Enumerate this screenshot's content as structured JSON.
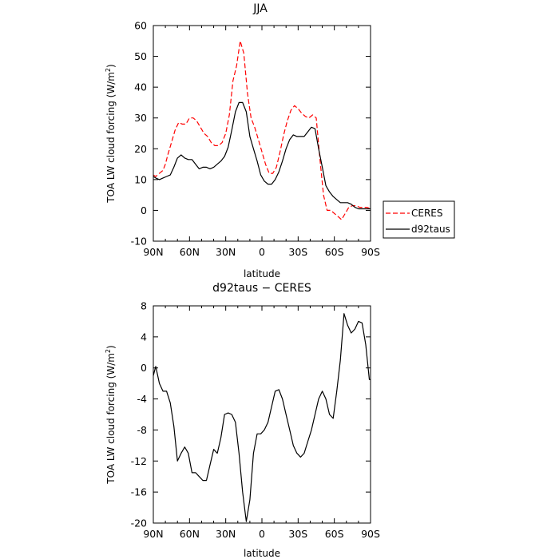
{
  "figure": {
    "background": "#ffffff"
  },
  "chart_data": [
    {
      "type": "line",
      "title": "JJA",
      "xlabel": "latitude",
      "ylabel": "TOA LW cloud forcing (W/m²)",
      "ylabel_parts": {
        "text": "TOA LW cloud forcing (W/m",
        "sup": "2",
        "close": ")"
      },
      "xlim": [
        90,
        -90
      ],
      "ylim": [
        -10,
        60
      ],
      "x_ticks": [
        {
          "value": 90,
          "label": "90N"
        },
        {
          "value": 60,
          "label": "60N"
        },
        {
          "value": 30,
          "label": "30N"
        },
        {
          "value": 0,
          "label": "0"
        },
        {
          "value": -30,
          "label": "30S"
        },
        {
          "value": -60,
          "label": "60S"
        },
        {
          "value": -90,
          "label": "90S"
        }
      ],
      "y_ticks": [
        -10,
        0,
        10,
        20,
        30,
        40,
        50,
        60
      ],
      "grid": false,
      "legend": {
        "position": "right-outside",
        "bordered": true
      },
      "series": [
        {
          "name": "CERES",
          "color": "#ff0000",
          "dash": "dashed",
          "x": [
            90,
            88,
            85,
            82,
            80,
            78,
            75,
            72,
            69,
            66,
            63,
            60,
            57,
            54,
            51,
            48,
            45,
            42,
            39,
            36,
            33,
            30,
            27,
            24,
            21,
            18,
            15,
            12,
            9,
            6,
            3,
            0,
            -3,
            -6,
            -9,
            -12,
            -15,
            -18,
            -21,
            -24,
            -27,
            -30,
            -33,
            -36,
            -39,
            -42,
            -45,
            -48,
            -51,
            -54,
            -57,
            -60,
            -63,
            -66,
            -69,
            -72,
            -75,
            -78,
            -81,
            -84,
            -87,
            -90
          ],
          "y": [
            11.5,
            11,
            12,
            13,
            15,
            18,
            22,
            26,
            28.5,
            28,
            28,
            30,
            30,
            29,
            27,
            25,
            24,
            22,
            21,
            21,
            22,
            25,
            31,
            42,
            47,
            55,
            51,
            38,
            30,
            27,
            23,
            19,
            15,
            12,
            12,
            14,
            19,
            24.5,
            29,
            32.5,
            34,
            33,
            31.5,
            30.5,
            30,
            31,
            30,
            17,
            5,
            0,
            0,
            -1,
            -2,
            -3,
            -1,
            1,
            1.5,
            1.5,
            1,
            1,
            1,
            0.5
          ]
        },
        {
          "name": "d92taus",
          "color": "#000000",
          "dash": "solid",
          "x": [
            90,
            88,
            85,
            82,
            79,
            76,
            73,
            70,
            67,
            64,
            61,
            58,
            55,
            52,
            49,
            46,
            43,
            40,
            37,
            34,
            31,
            28,
            25,
            22,
            19,
            16,
            13,
            10,
            7,
            4,
            1,
            -2,
            -5,
            -8,
            -11,
            -14,
            -17,
            -20,
            -23,
            -26,
            -29,
            -32,
            -35,
            -38,
            -41,
            -44,
            -47,
            -50,
            -53,
            -56,
            -59,
            -62,
            -65,
            -68,
            -71,
            -74,
            -77,
            -80,
            -83,
            -86,
            -89,
            -90
          ],
          "y": [
            11,
            10.5,
            10,
            10.5,
            11,
            11.5,
            14,
            17,
            18,
            17,
            16.5,
            16.5,
            15,
            13.5,
            14,
            14,
            13.5,
            14,
            15,
            16,
            17.5,
            20.5,
            26,
            32,
            35,
            35,
            32,
            24,
            20,
            16,
            11.5,
            9.5,
            8.5,
            8.5,
            10,
            12.5,
            16,
            20,
            23,
            24.5,
            24,
            24,
            24,
            25.5,
            27,
            26.5,
            20,
            14,
            8,
            6,
            4.5,
            3.5,
            2.5,
            2.5,
            2.5,
            2,
            1,
            0.5,
            0.5,
            0.5,
            0.5,
            0.5
          ]
        }
      ]
    },
    {
      "type": "line",
      "title": "d92taus − CERES",
      "xlabel": "latitude",
      "ylabel": "TOA LW cloud forcing (W/m²)",
      "ylabel_parts": {
        "text": "TOA LW cloud forcing (W/m",
        "sup": "2",
        "close": ")"
      },
      "xlim": [
        90,
        -90
      ],
      "ylim": [
        -20,
        8
      ],
      "x_ticks": [
        {
          "value": 90,
          "label": "90N"
        },
        {
          "value": 60,
          "label": "60N"
        },
        {
          "value": 30,
          "label": "30N"
        },
        {
          "value": 0,
          "label": "0"
        },
        {
          "value": -30,
          "label": "30S"
        },
        {
          "value": -60,
          "label": "60S"
        },
        {
          "value": -90,
          "label": "90S"
        }
      ],
      "y_ticks": [
        -20,
        -16,
        -12,
        -8,
        -4,
        0,
        4,
        8
      ],
      "grid": false,
      "series": [
        {
          "color": "#000000",
          "dash": "solid",
          "x": [
            90,
            88,
            85,
            82,
            79,
            76,
            73,
            70,
            67,
            64,
            61,
            58,
            55,
            52,
            49,
            46,
            43,
            40,
            37,
            34,
            31,
            28,
            25,
            22,
            19,
            16,
            13,
            10,
            7,
            4,
            1,
            -2,
            -5,
            -8,
            -11,
            -14,
            -17,
            -20,
            -23,
            -26,
            -29,
            -32,
            -35,
            -38,
            -41,
            -44,
            -47,
            -50,
            -53,
            -56,
            -59,
            -62,
            -65,
            -68,
            -71,
            -74,
            -77,
            -80,
            -83,
            -86,
            -89,
            -90
          ],
          "y": [
            -1,
            0.2,
            -2,
            -3,
            -3,
            -4.5,
            -7.5,
            -12,
            -11,
            -10.2,
            -11,
            -13.5,
            -13.5,
            -14,
            -14.5,
            -14.5,
            -12.5,
            -10.5,
            -11,
            -9,
            -6,
            -5.8,
            -6,
            -7,
            -11,
            -16,
            -19.8,
            -17,
            -11,
            -8.5,
            -8.5,
            -8,
            -7,
            -5,
            -3,
            -2.8,
            -4,
            -6,
            -8,
            -10,
            -11,
            -11.5,
            -11,
            -9.5,
            -8,
            -6,
            -4,
            -3,
            -4,
            -6,
            -6.5,
            -3,
            1,
            7,
            5.5,
            4.5,
            5,
            6,
            5.8,
            3,
            -1.5,
            -1.5
          ]
        }
      ]
    }
  ]
}
